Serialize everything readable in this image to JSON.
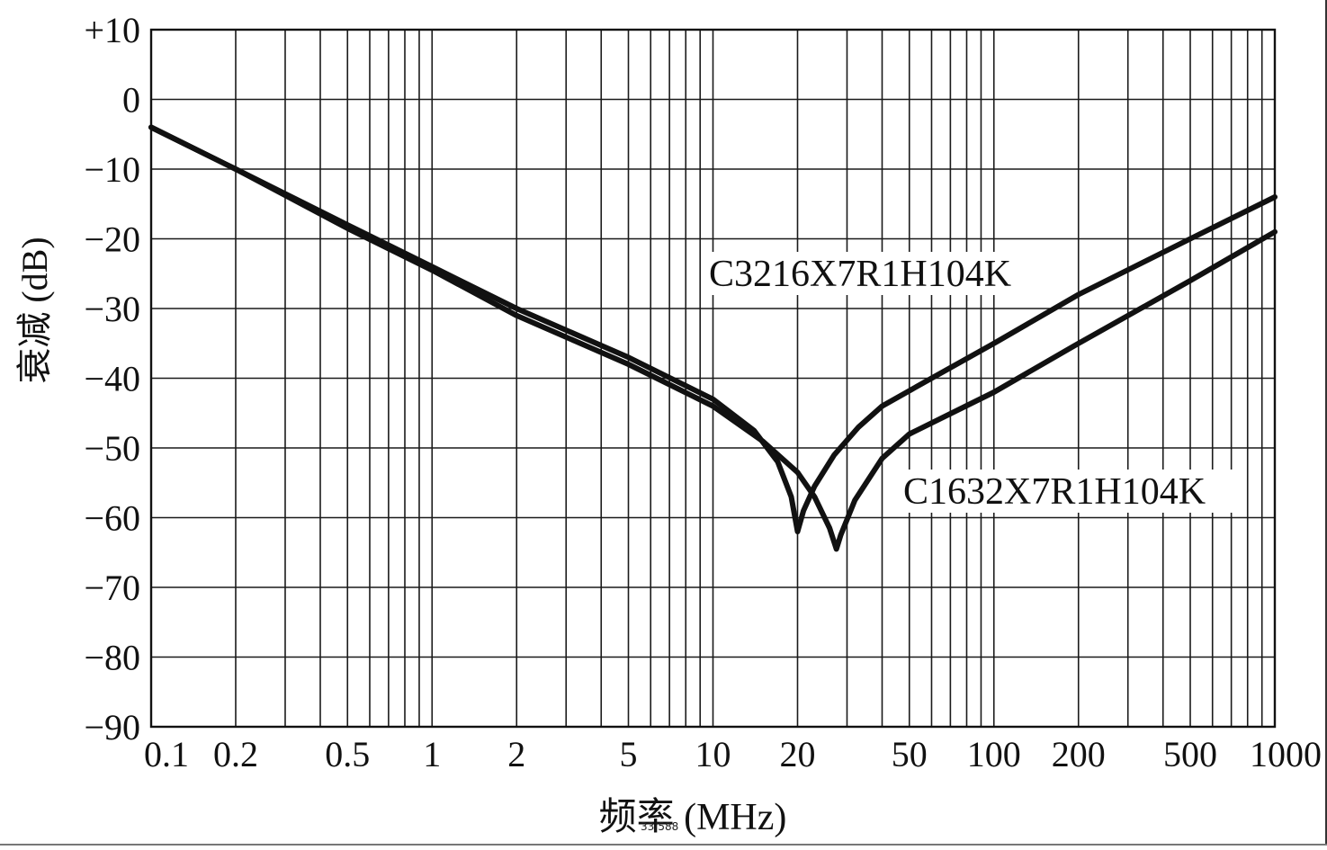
{
  "page": {
    "page_indicator": "33/588"
  },
  "chart_data": {
    "type": "line",
    "title": "",
    "xlabel": "频率 (MHz)",
    "ylabel": "衰减 (dB)",
    "xscale": "log",
    "xlim": [
      0.1,
      1000
    ],
    "ylim": [
      -90,
      10
    ],
    "grid": true,
    "x_ticks": [
      0.1,
      0.2,
      0.5,
      1,
      2,
      5,
      10,
      20,
      50,
      100,
      200,
      500,
      1000
    ],
    "x_tick_labels": [
      "0.1",
      "0.2",
      "0.5",
      "1",
      "2",
      "5",
      "10",
      "20",
      "50",
      "100",
      "200",
      "500",
      "1000"
    ],
    "y_ticks": [
      10,
      0,
      -10,
      -20,
      -30,
      -40,
      -50,
      -60,
      -70,
      -80,
      -90
    ],
    "y_tick_labels": [
      "+10",
      "0",
      "−10",
      "−20",
      "−30",
      "−40",
      "−50",
      "−60",
      "−70",
      "−80",
      "−90"
    ],
    "series": [
      {
        "name": "C3216X7R1H104K",
        "x": [
          0.1,
          0.2,
          0.5,
          1,
          2,
          5,
          10,
          14,
          17,
          19,
          20,
          21,
          23,
          27,
          33,
          40,
          60,
          100,
          200,
          500,
          1000
        ],
        "y": [
          -4,
          -10,
          -18,
          -24,
          -30,
          -37,
          -43,
          -47.5,
          -52,
          -57,
          -62,
          -59,
          -55.5,
          -51,
          -47,
          -44,
          -40,
          -35,
          -28,
          -20,
          -14
        ]
      },
      {
        "name": "C1632X7R1H104K",
        "x": [
          0.1,
          0.2,
          0.5,
          1,
          2,
          5,
          10,
          15,
          20,
          23,
          26,
          27.5,
          28.5,
          32,
          40,
          50,
          100,
          200,
          500,
          1000
        ],
        "y": [
          -4,
          -10,
          -18.5,
          -24.5,
          -31,
          -38,
          -44,
          -49,
          -53.5,
          -57,
          -61.5,
          -64.5,
          -62.5,
          -57.5,
          -51.5,
          -48,
          -42,
          -35,
          -26,
          -19
        ]
      }
    ],
    "annotations": [
      {
        "text": "C3216X7R1H104K",
        "series": 0
      },
      {
        "text": "C1632X7R1H104K",
        "series": 1
      }
    ]
  }
}
